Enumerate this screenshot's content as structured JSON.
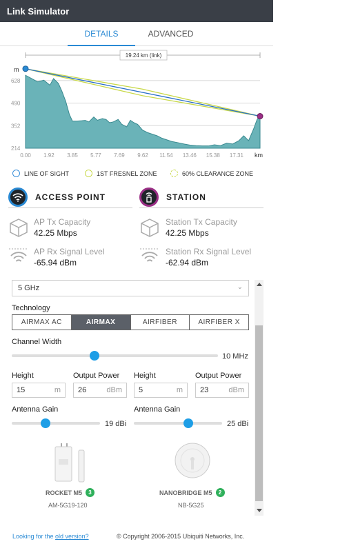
{
  "window": {
    "title": "Link Simulator"
  },
  "tabs": [
    {
      "label": "DETAILS"
    },
    {
      "label": "ADVANCED"
    }
  ],
  "chart_data": {
    "type": "area",
    "title": "",
    "link_label": "19.24 km (link)",
    "ylabel": "m",
    "xlabel": "km",
    "y_ticks": [
      "214",
      "352",
      "490",
      "628"
    ],
    "x_ticks": [
      "0.00",
      "1.92",
      "3.85",
      "5.77",
      "7.69",
      "9.62",
      "11.54",
      "13.46",
      "15.38",
      "17.31"
    ],
    "xlim": [
      0,
      19.24
    ],
    "ylim": [
      214,
      720
    ],
    "series": [
      {
        "x": [
          0,
          0.5,
          1.0,
          1.5,
          2.0,
          2.3,
          2.7,
          3.0,
          3.3,
          3.6,
          3.85,
          4.2,
          4.6,
          4.9,
          5.2,
          5.6,
          5.9,
          6.3,
          6.6,
          6.9,
          7.2,
          7.6,
          7.9,
          8.3,
          8.6,
          8.9,
          9.2,
          9.6,
          10.0,
          10.4,
          10.8,
          11.2,
          11.6,
          12.0,
          12.5,
          13.0,
          13.5,
          14.0,
          14.5,
          15.0,
          15.5,
          16.0,
          16.5,
          17.0,
          17.5,
          17.9,
          18.3,
          18.7,
          19.0,
          19.24
        ],
        "y": [
          660,
          640,
          620,
          630,
          600,
          640,
          610,
          560,
          500,
          420,
          380,
          380,
          382,
          384,
          375,
          405,
          385,
          395,
          390,
          370,
          375,
          390,
          360,
          345,
          385,
          370,
          360,
          325,
          310,
          300,
          290,
          275,
          265,
          255,
          248,
          240,
          233,
          230,
          228,
          228,
          235,
          230,
          245,
          240,
          260,
          290,
          260,
          330,
          390,
          420
        ]
      }
    ],
    "line_of_sight": [
      [
        0,
        700
      ],
      [
        19.24,
        410
      ]
    ],
    "fresnel_upper": [
      [
        0,
        700
      ],
      [
        9.62,
        575
      ],
      [
        19.24,
        410
      ]
    ],
    "clearance_lower": [
      [
        0,
        700
      ],
      [
        9.62,
        535
      ],
      [
        19.24,
        410
      ]
    ]
  },
  "legend": [
    {
      "label": "LINE OF SIGHT",
      "color": "#3a8fd9",
      "style": "solid"
    },
    {
      "label": "1ST FRESNEL ZONE",
      "color": "#c9d94a",
      "style": "solid"
    },
    {
      "label": "60% CLEARANCE ZONE",
      "color": "#c9d94a",
      "style": "dashed"
    }
  ],
  "access_point": {
    "title": "ACCESS POINT",
    "tx_label": "AP Tx Capacity",
    "tx_value": "42.25 Mbps",
    "rx_label": "AP Rx Signal Level",
    "rx_value": "-65.94 dBm",
    "accent": "#2a8ad4"
  },
  "station": {
    "title": "STATION",
    "tx_label": "Station Tx Capacity",
    "tx_value": "42.25 Mbps",
    "rx_label": "Station Rx Signal Level",
    "rx_value": "-62.94 dBm",
    "accent": "#9b2f86"
  },
  "settings": {
    "frequency": "5 GHz",
    "technology_label": "Technology",
    "technologies": [
      "AIRMAX AC",
      "AIRMAX",
      "AIRFIBER",
      "AIRFIBER X"
    ],
    "technology_selected": 1,
    "channel_width_label": "Channel Width",
    "channel_width_value": "10 MHz",
    "channel_width_fraction": 0.4,
    "ap": {
      "height_label": "Height",
      "height_value": "15",
      "height_unit": "m",
      "power_label": "Output Power",
      "power_value": "26",
      "power_unit": "dBm",
      "gain_label": "Antenna Gain",
      "gain_value": "19 dBi",
      "gain_fraction": 0.38,
      "model": "ROCKET M5",
      "model_count": "3",
      "sku": "AM-5G19-120"
    },
    "station": {
      "height_label": "Height",
      "height_value": "5",
      "height_unit": "m",
      "power_label": "Output Power",
      "power_value": "23",
      "power_unit": "dBm",
      "gain_label": "Antenna Gain",
      "gain_value": "25 dBi",
      "gain_fraction": 0.62,
      "model": "NANOBRIDGE M5",
      "model_count": "2",
      "sku": "NB-5G25"
    }
  },
  "footer": {
    "link_prefix": "Looking for the ",
    "link_text": "old version?",
    "copyright": "© Copyright 2006-2015 Ubiquiti Networks, Inc."
  }
}
